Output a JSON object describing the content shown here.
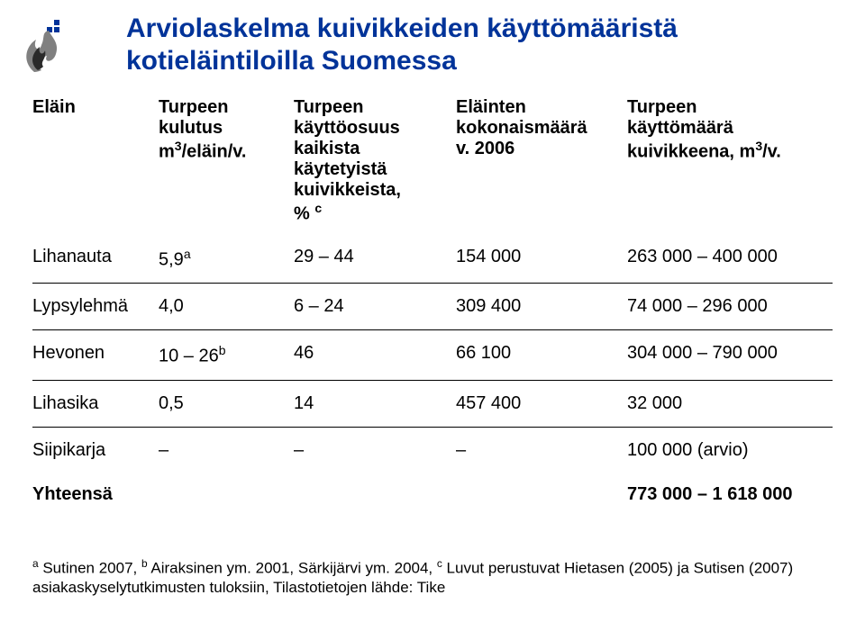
{
  "title": "Arviolaskelma kuivikkeiden käyttömääristä\nkotieläintiloilla Suomessa",
  "headers": {
    "c0": "Eläin",
    "c1_l1": "Turpeen",
    "c1_l2": "kulutus",
    "c1_l3a": "m",
    "c1_l3sup": "3",
    "c1_l3b": "/eläin/v.",
    "c2_l1": "Turpeen",
    "c2_l2": "käyttöosuus",
    "c2_l3": "kaikista",
    "c2_l4": "käytetyistä",
    "c2_l5": "kuivikkeista,",
    "c2_l6a": "% ",
    "c2_l6sup": "c",
    "c3_l1": "Eläinten",
    "c3_l2": "kokonaismäärä",
    "c3_l3": "v. 2006",
    "c4_l1": "Turpeen",
    "c4_l2": "käyttömäärä",
    "c4_l3a": "kuivikkeena, m",
    "c4_l3sup": "3",
    "c4_l3b": "/v."
  },
  "rows": [
    {
      "c0": "Lihanauta",
      "c1a": "5,9",
      "c1sup": "a",
      "c2": "29 – 44",
      "c3": "154 000",
      "c4": "263 000 – 400 000"
    },
    {
      "c0": "Lypsylehmä",
      "c1a": "4,0",
      "c1sup": "",
      "c2": "6 – 24",
      "c3": "309 400",
      "c4": "74 000 – 296 000"
    },
    {
      "c0": "Hevonen",
      "c1a": "10 – 26",
      "c1sup": "b",
      "c2": "46",
      "c3": "66 100",
      "c4": "304 000 – 790 000"
    },
    {
      "c0": "Lihasika",
      "c1a": "0,5",
      "c1sup": "",
      "c2": "14",
      "c3": "457 400",
      "c4": "32 000"
    },
    {
      "c0": "Siipikarja",
      "c1a": "–",
      "c1sup": "",
      "c2": "–",
      "c3": "–",
      "c4": "100 000 (arvio)"
    }
  ],
  "summary": {
    "label": "Yhteensä",
    "value": "773 000 – 1 618 000"
  },
  "footnote": {
    "sup_a": "a",
    "t1": " Sutinen 2007, ",
    "sup_b": "b",
    "t2": " Airaksinen ym. 2001, Särkijärvi ym. 2004, ",
    "sup_c": "c",
    "t3": " Luvut perustuvat Hietasen (2005) ja Sutisen (2007) asiakaskyselytutkimusten tuloksiin, Tilastotietojen lähde: Tike"
  },
  "colors": {
    "title": "#003399",
    "logo_gray": "#808080",
    "logo_dark": "#2a2a2a",
    "background": "#ffffff",
    "text": "#000000"
  }
}
